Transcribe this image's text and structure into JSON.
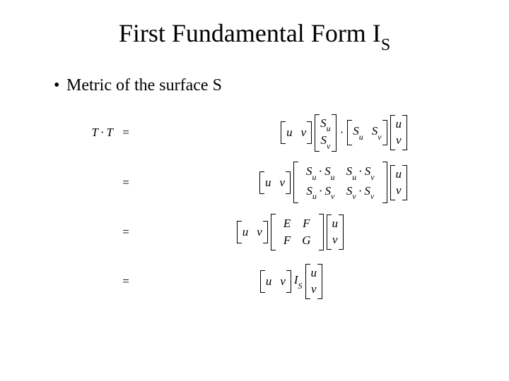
{
  "title": {
    "main": "First Fundamental Form I",
    "sub": "S"
  },
  "bullet": {
    "dot": "•",
    "text": "Metric of the surface S"
  },
  "sym": {
    "T": "T",
    "dot": "·",
    "eq": "=",
    "u": "u",
    "v": "v",
    "S": "S",
    "su": "u",
    "sv": "v",
    "E": "E",
    "F": "F",
    "G": "G",
    "I": "I",
    "Isub": "S"
  },
  "style": {
    "background": "#ffffff",
    "text_color": "#000000",
    "title_fontsize": 36,
    "body_fontsize": 24,
    "math_fontsize": 17
  }
}
